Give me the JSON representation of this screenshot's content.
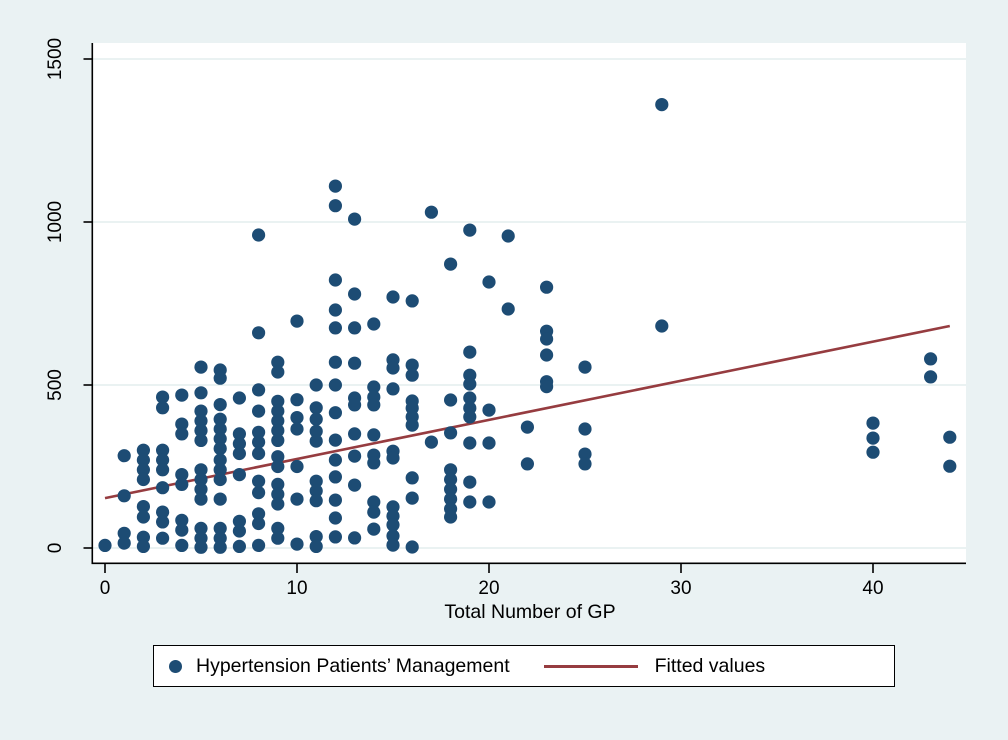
{
  "colors": {
    "background": "#eaf2f3",
    "plot_background": "#ffffff",
    "gridline": "#e4edee",
    "axis": "#000000",
    "scatter": "#1d4c74",
    "fit_line": "#963c40"
  },
  "chart_data": {
    "type": "scatter",
    "title": "",
    "xlabel": "Total Number of GP",
    "ylabel": "",
    "x_ticks": [
      0,
      10,
      20,
      30,
      40
    ],
    "y_ticks": [
      0,
      500,
      1000,
      1500
    ],
    "xlim": [
      -0.7,
      45
    ],
    "ylim": [
      -45,
      1560
    ],
    "grid": "horizontal-only",
    "legend_position": "bottom",
    "series": [
      {
        "name": "Hypertension Patients’ Management",
        "type": "scatter",
        "color": "#1d4c74",
        "points": [
          [
            0,
            8
          ],
          [
            1,
            283
          ],
          [
            1,
            160
          ],
          [
            1,
            45
          ],
          [
            1,
            15
          ],
          [
            2,
            300
          ],
          [
            2,
            270
          ],
          [
            2,
            240
          ],
          [
            2,
            210
          ],
          [
            2,
            127
          ],
          [
            2,
            95
          ],
          [
            2,
            33
          ],
          [
            2,
            5
          ],
          [
            3,
            463
          ],
          [
            3,
            430
          ],
          [
            3,
            300
          ],
          [
            3,
            270
          ],
          [
            3,
            240
          ],
          [
            3,
            185
          ],
          [
            3,
            110
          ],
          [
            3,
            80
          ],
          [
            3,
            30
          ],
          [
            4,
            469
          ],
          [
            4,
            380
          ],
          [
            4,
            350
          ],
          [
            4,
            225
          ],
          [
            4,
            195
          ],
          [
            4,
            85
          ],
          [
            4,
            55
          ],
          [
            4,
            8
          ],
          [
            5,
            555
          ],
          [
            5,
            476
          ],
          [
            5,
            420
          ],
          [
            5,
            390
          ],
          [
            5,
            360
          ],
          [
            5,
            330
          ],
          [
            5,
            240
          ],
          [
            5,
            210
          ],
          [
            5,
            180
          ],
          [
            5,
            150
          ],
          [
            5,
            60
          ],
          [
            5,
            30
          ],
          [
            5,
            2
          ],
          [
            6,
            546
          ],
          [
            6,
            521
          ],
          [
            6,
            440
          ],
          [
            6,
            395
          ],
          [
            6,
            365
          ],
          [
            6,
            335
          ],
          [
            6,
            305
          ],
          [
            6,
            270
          ],
          [
            6,
            240
          ],
          [
            6,
            210
          ],
          [
            6,
            150
          ],
          [
            6,
            60
          ],
          [
            6,
            30
          ],
          [
            6,
            2
          ],
          [
            7,
            460
          ],
          [
            7,
            350
          ],
          [
            7,
            320
          ],
          [
            7,
            290
          ],
          [
            7,
            225
          ],
          [
            7,
            82
          ],
          [
            7,
            52
          ],
          [
            7,
            5
          ],
          [
            8,
            960
          ],
          [
            8,
            660
          ],
          [
            8,
            485
          ],
          [
            8,
            420
          ],
          [
            8,
            355
          ],
          [
            8,
            325
          ],
          [
            8,
            290
          ],
          [
            8,
            205
          ],
          [
            8,
            170
          ],
          [
            8,
            105
          ],
          [
            8,
            75
          ],
          [
            8,
            8
          ],
          [
            9,
            570
          ],
          [
            9,
            540
          ],
          [
            9,
            450
          ],
          [
            9,
            420
          ],
          [
            9,
            390
          ],
          [
            9,
            360
          ],
          [
            9,
            330
          ],
          [
            9,
            280
          ],
          [
            9,
            250
          ],
          [
            9,
            195
          ],
          [
            9,
            165
          ],
          [
            9,
            135
          ],
          [
            9,
            60
          ],
          [
            9,
            30
          ],
          [
            10,
            696
          ],
          [
            10,
            455
          ],
          [
            10,
            400
          ],
          [
            10,
            365
          ],
          [
            10,
            250
          ],
          [
            10,
            150
          ],
          [
            10,
            12
          ],
          [
            11,
            500
          ],
          [
            11,
            430
          ],
          [
            11,
            395
          ],
          [
            11,
            358
          ],
          [
            11,
            328
          ],
          [
            11,
            205
          ],
          [
            11,
            175
          ],
          [
            11,
            145
          ],
          [
            11,
            35
          ],
          [
            11,
            5
          ],
          [
            12,
            1110
          ],
          [
            12,
            1050
          ],
          [
            12,
            822
          ],
          [
            12,
            730
          ],
          [
            12,
            675
          ],
          [
            12,
            570
          ],
          [
            12,
            500
          ],
          [
            12,
            415
          ],
          [
            12,
            331
          ],
          [
            12,
            270
          ],
          [
            12,
            218
          ],
          [
            12,
            147
          ],
          [
            12,
            92
          ],
          [
            12,
            34
          ],
          [
            13,
            1009
          ],
          [
            13,
            779
          ],
          [
            13,
            675
          ],
          [
            13,
            567
          ],
          [
            13,
            460
          ],
          [
            13,
            439
          ],
          [
            13,
            350
          ],
          [
            13,
            282
          ],
          [
            13,
            193
          ],
          [
            13,
            31
          ],
          [
            14,
            687
          ],
          [
            14,
            494
          ],
          [
            14,
            463
          ],
          [
            14,
            439
          ],
          [
            14,
            347
          ],
          [
            14,
            285
          ],
          [
            14,
            261
          ],
          [
            14,
            141
          ],
          [
            14,
            110
          ],
          [
            14,
            58
          ],
          [
            15,
            770
          ],
          [
            15,
            577
          ],
          [
            15,
            552
          ],
          [
            15,
            488
          ],
          [
            15,
            297
          ],
          [
            15,
            276
          ],
          [
            15,
            126
          ],
          [
            15,
            98
          ],
          [
            15,
            71
          ],
          [
            15,
            37
          ],
          [
            15,
            9
          ],
          [
            16,
            758
          ],
          [
            16,
            561
          ],
          [
            16,
            530
          ],
          [
            16,
            451
          ],
          [
            16,
            429
          ],
          [
            16,
            402
          ],
          [
            16,
            377
          ],
          [
            16,
            215
          ],
          [
            16,
            153
          ],
          [
            16,
            3
          ],
          [
            17,
            1030
          ],
          [
            17,
            325
          ],
          [
            18,
            871
          ],
          [
            18,
            454
          ],
          [
            18,
            353
          ],
          [
            18,
            240
          ],
          [
            18,
            210
          ],
          [
            18,
            180
          ],
          [
            18,
            150
          ],
          [
            18,
            120
          ],
          [
            18,
            95
          ],
          [
            19,
            975
          ],
          [
            19,
            601
          ],
          [
            19,
            530
          ],
          [
            19,
            503
          ],
          [
            19,
            460
          ],
          [
            19,
            429
          ],
          [
            19,
            402
          ],
          [
            19,
            322
          ],
          [
            19,
            202
          ],
          [
            19,
            141
          ],
          [
            20,
            816
          ],
          [
            20,
            423
          ],
          [
            20,
            322
          ],
          [
            20,
            141
          ],
          [
            21,
            957
          ],
          [
            21,
            733
          ],
          [
            22,
            371
          ],
          [
            22,
            258
          ],
          [
            23,
            800
          ],
          [
            23,
            665
          ],
          [
            23,
            641
          ],
          [
            23,
            592
          ],
          [
            23,
            510
          ],
          [
            23,
            495
          ],
          [
            25,
            555
          ],
          [
            25,
            365
          ],
          [
            25,
            288
          ],
          [
            25,
            258
          ],
          [
            29,
            1360
          ],
          [
            29,
            681
          ],
          [
            40,
            383
          ],
          [
            40,
            337
          ],
          [
            40,
            294
          ],
          [
            43,
            580
          ],
          [
            43,
            525
          ],
          [
            44,
            340
          ],
          [
            44,
            251
          ]
        ]
      },
      {
        "name": "Fitted values",
        "type": "line",
        "color": "#963c40",
        "line": {
          "x0": 0,
          "y0": 153,
          "x1": 44,
          "y1": 681
        }
      }
    ]
  },
  "legend": {
    "scatter_label": "Hypertension Patients’ Management",
    "line_label": "Fitted values"
  },
  "axes": {
    "x_title": "Total Number of GP"
  }
}
